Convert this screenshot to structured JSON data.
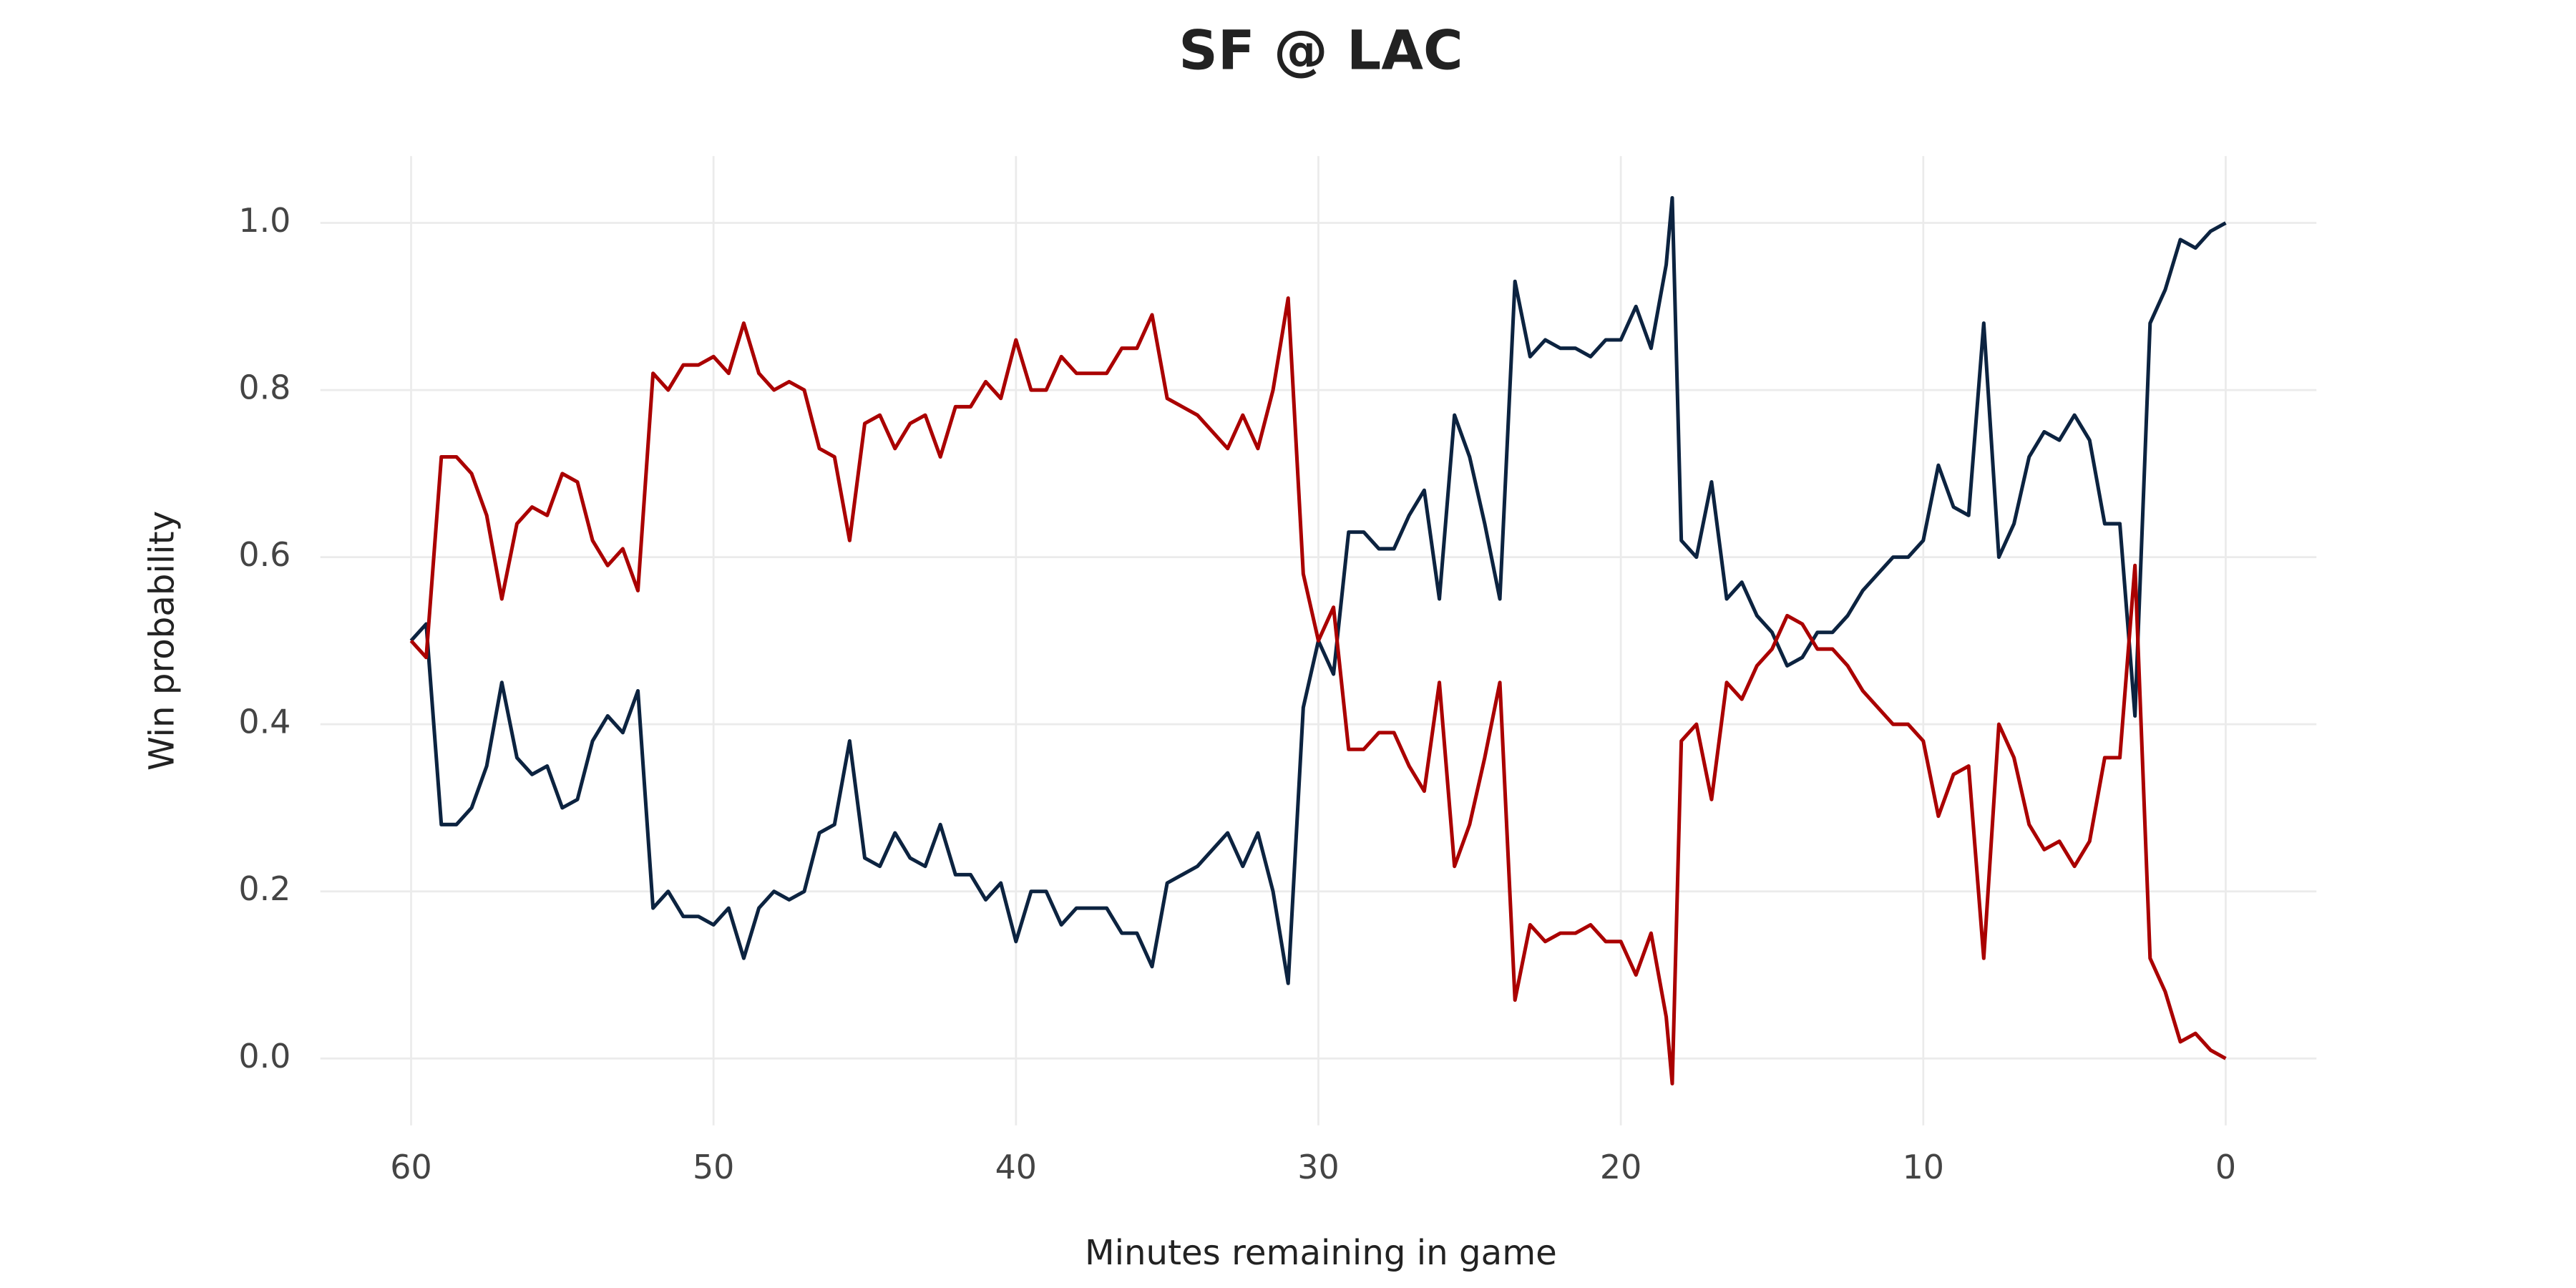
{
  "chart_data": {
    "type": "line",
    "title": "SF @ LAC",
    "x_label": "Minutes remaining in game",
    "y_label": "Win probability",
    "x": [
      60,
      59.5,
      59,
      58.5,
      58,
      57.5,
      57,
      56.5,
      56,
      55.5,
      55,
      54.5,
      54,
      53.5,
      53,
      52.5,
      52,
      51.5,
      51,
      50.5,
      50,
      49.5,
      49,
      48.5,
      48,
      47.5,
      47,
      46.5,
      46,
      45.5,
      45,
      44.5,
      44,
      43.5,
      43,
      42.5,
      42,
      41.5,
      41,
      40.5,
      40,
      39.5,
      39,
      38.5,
      38,
      37.5,
      37,
      36.5,
      36,
      35.5,
      35,
      34.5,
      34,
      33.5,
      33,
      32.5,
      32,
      31.5,
      31,
      30.5,
      30,
      29.5,
      29,
      28.5,
      28,
      27.5,
      27,
      26.5,
      26,
      25.5,
      25,
      24.5,
      24,
      23.5,
      23,
      22.5,
      22,
      21.5,
      21,
      20.5,
      20,
      19.5,
      19,
      18.5,
      18.3,
      18,
      17.5,
      17,
      16.5,
      16,
      15.5,
      15,
      14.5,
      14,
      13.5,
      13,
      12.5,
      12,
      11.5,
      11,
      10.5,
      10,
      9.5,
      9,
      8.5,
      8,
      7.5,
      7,
      6.5,
      6,
      5.5,
      5,
      4.5,
      4,
      3.5,
      3,
      2.5,
      2,
      1.5,
      1,
      0.5,
      0
    ],
    "series": [
      {
        "color": "#0c2340",
        "values": [
          0.5,
          0.52,
          0.28,
          0.28,
          0.3,
          0.35,
          0.45,
          0.36,
          0.34,
          0.35,
          0.3,
          0.31,
          0.38,
          0.41,
          0.39,
          0.44,
          0.18,
          0.2,
          0.17,
          0.17,
          0.16,
          0.18,
          0.12,
          0.18,
          0.2,
          0.19,
          0.2,
          0.27,
          0.28,
          0.38,
          0.24,
          0.23,
          0.27,
          0.24,
          0.23,
          0.28,
          0.22,
          0.22,
          0.19,
          0.21,
          0.14,
          0.2,
          0.2,
          0.16,
          0.18,
          0.18,
          0.18,
          0.15,
          0.15,
          0.11,
          0.21,
          0.22,
          0.23,
          0.25,
          0.27,
          0.23,
          0.27,
          0.2,
          0.09,
          0.42,
          0.5,
          0.46,
          0.63,
          0.63,
          0.61,
          0.61,
          0.65,
          0.68,
          0.55,
          0.77,
          0.72,
          0.64,
          0.55,
          0.93,
          0.84,
          0.86,
          0.85,
          0.85,
          0.84,
          0.86,
          0.86,
          0.9,
          0.85,
          0.95,
          1.03,
          0.62,
          0.6,
          0.69,
          0.55,
          0.57,
          0.53,
          0.51,
          0.47,
          0.48,
          0.51,
          0.51,
          0.53,
          0.56,
          0.58,
          0.6,
          0.6,
          0.62,
          0.71,
          0.66,
          0.65,
          0.88,
          0.6,
          0.64,
          0.72,
          0.75,
          0.74,
          0.77,
          0.74,
          0.64,
          0.64,
          0.41,
          0.88,
          0.92,
          0.98,
          0.97,
          0.99,
          1.0
        ]
      },
      {
        "color": "#aa0000",
        "values": [
          0.5,
          0.48,
          0.72,
          0.72,
          0.7,
          0.65,
          0.55,
          0.64,
          0.66,
          0.65,
          0.7,
          0.69,
          0.62,
          0.59,
          0.61,
          0.56,
          0.82,
          0.8,
          0.83,
          0.83,
          0.84,
          0.82,
          0.88,
          0.82,
          0.8,
          0.81,
          0.8,
          0.73,
          0.72,
          0.62,
          0.76,
          0.77,
          0.73,
          0.76,
          0.77,
          0.72,
          0.78,
          0.78,
          0.81,
          0.79,
          0.86,
          0.8,
          0.8,
          0.84,
          0.82,
          0.82,
          0.82,
          0.85,
          0.85,
          0.89,
          0.79,
          0.78,
          0.77,
          0.75,
          0.73,
          0.77,
          0.73,
          0.8,
          0.91,
          0.58,
          0.5,
          0.54,
          0.37,
          0.37,
          0.39,
          0.39,
          0.35,
          0.32,
          0.45,
          0.23,
          0.28,
          0.36,
          0.45,
          0.07,
          0.16,
          0.14,
          0.15,
          0.15,
          0.16,
          0.14,
          0.14,
          0.1,
          0.15,
          0.05,
          -0.03,
          0.38,
          0.4,
          0.31,
          0.45,
          0.43,
          0.47,
          0.49,
          0.53,
          0.52,
          0.49,
          0.49,
          0.47,
          0.44,
          0.42,
          0.4,
          0.4,
          0.38,
          0.29,
          0.34,
          0.35,
          0.12,
          0.4,
          0.36,
          0.28,
          0.25,
          0.26,
          0.23,
          0.26,
          0.36,
          0.36,
          0.59,
          0.12,
          0.08,
          0.02,
          0.03,
          0.01,
          0.0
        ]
      }
    ],
    "xlim": [
      63,
      -3
    ],
    "xticks": [
      60,
      50,
      40,
      30,
      20,
      10,
      0
    ],
    "ylim": [
      -0.08,
      1.08
    ],
    "yticks": [
      {
        "value": 0,
        "label": "0.0"
      },
      {
        "value": 0.2,
        "label": "0.2"
      },
      {
        "value": 0.4,
        "label": "0.4"
      },
      {
        "value": 0.6,
        "label": "0.6"
      },
      {
        "value": 0.8,
        "label": "0.8"
      },
      {
        "value": 1,
        "label": "1.0"
      }
    ],
    "grid": true
  }
}
